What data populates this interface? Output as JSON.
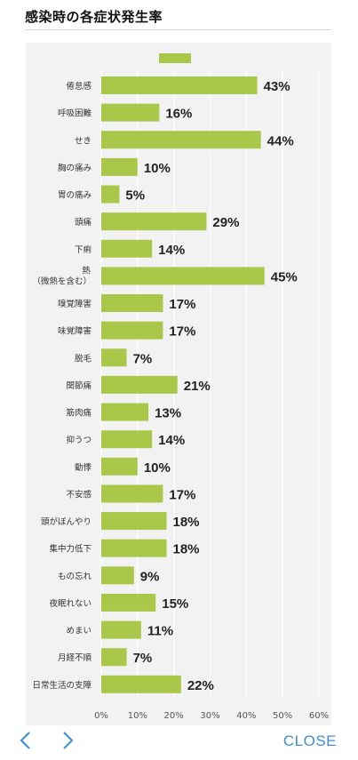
{
  "header": {
    "title": "感染時の各症状発生率"
  },
  "chart_data": {
    "type": "bar",
    "orientation": "horizontal",
    "title": "感染時の各症状発生率",
    "categories": [
      "倦怠感",
      "呼吸困難",
      "せき",
      "胸の痛み",
      "胃の痛み",
      "頭痛",
      "下痢",
      "熱\n（微熱を含む）",
      "嗅覚障害",
      "味覚障害",
      "脱毛",
      "関節痛",
      "筋肉痛",
      "抑うつ",
      "動悸",
      "不安感",
      "頭がぼんやり",
      "集中力低下",
      "もの忘れ",
      "夜眠れない",
      "めまい",
      "月経不順",
      "日常生活の支障"
    ],
    "series": [
      {
        "values": [
          43,
          16,
          44,
          10,
          5,
          29,
          14,
          45,
          17,
          17,
          7,
          21,
          13,
          14,
          10,
          17,
          18,
          18,
          9,
          15,
          11,
          7,
          22
        ]
      }
    ],
    "value_labels": [
      "43%",
      "16%",
      "44%",
      "10%",
      "5%",
      "29%",
      "14%",
      "45%",
      "17%",
      "17%",
      "7%",
      "21%",
      "13%",
      "14%",
      "10%",
      "17%",
      "18%",
      "18%",
      "9%",
      "15%",
      "11%",
      "7%",
      "22%"
    ],
    "xlim": [
      0,
      60
    ],
    "x_ticks": [
      "0%",
      "10%",
      "20%",
      "30%",
      "40%",
      "50%",
      "60%"
    ],
    "x_tick_values": [
      0,
      10,
      20,
      30,
      40,
      50,
      60
    ],
    "grid": true,
    "legend": "top-center",
    "colors": {
      "bar": "#a9c84a",
      "grid": "#ffffff",
      "label": "#333333",
      "background": "#f2f2f2"
    }
  },
  "nav": {
    "prev_icon": "chevron-left-icon",
    "next_icon": "chevron-right-icon",
    "close_label": "CLOSE",
    "accent": "#3b8ed6"
  }
}
